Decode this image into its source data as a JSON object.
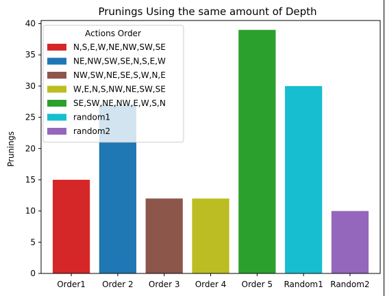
{
  "chart_data": {
    "type": "bar",
    "title": "Prunings Using the same amount of Depth",
    "xlabel": "",
    "ylabel": "Prunings",
    "categories": [
      "Order1",
      "Order 2",
      "Order 3",
      "Order 4",
      "Order 5",
      "Random1",
      "Random2"
    ],
    "values": [
      15,
      27,
      12,
      12,
      39,
      30,
      10
    ],
    "colors": [
      "#d62728",
      "#1f77b4",
      "#8c564b",
      "#bcbd22",
      "#2ca02c",
      "#17becf",
      "#9467bd"
    ],
    "ylim": [
      0,
      40.5
    ],
    "yticks": [
      0,
      5,
      10,
      15,
      20,
      25,
      30,
      35,
      40
    ],
    "grid": false,
    "legend": {
      "title": "Actions Order",
      "placement": "top-left",
      "entries": [
        {
          "label": "N,S,E,W,NE,NW,SW,SE",
          "color": "#d62728"
        },
        {
          "label": "NE,NW,SW,SE,N,S,E,W",
          "color": "#1f77b4"
        },
        {
          "label": "NW,SW,NE,SE,S,W,N,E",
          "color": "#8c564b"
        },
        {
          "label": "W,E,N,S,NW,NE,SW,SE",
          "color": "#bcbd22"
        },
        {
          "label": "SE,SW,NE,NW,E,W,S,N",
          "color": "#2ca02c"
        },
        {
          "label": "random1",
          "color": "#17becf"
        },
        {
          "label": "random2",
          "color": "#9467bd"
        }
      ]
    }
  }
}
